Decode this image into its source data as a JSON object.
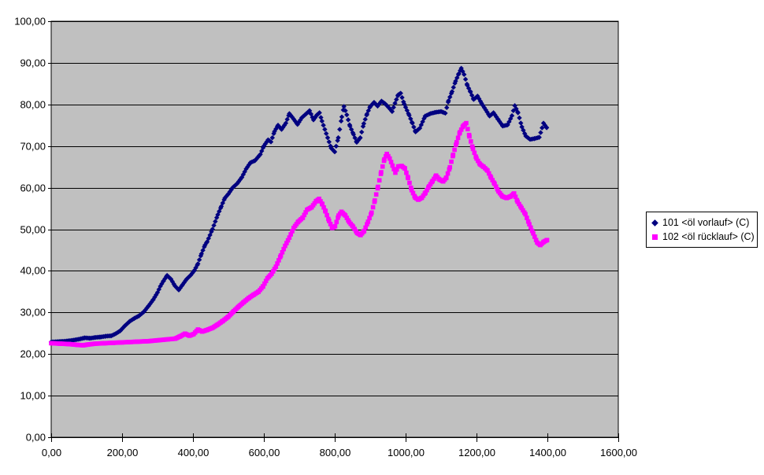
{
  "chart_data": {
    "type": "scatter",
    "title": "",
    "xlabel": "",
    "ylabel": "",
    "grid": true,
    "plot_background": "#c0c0c0",
    "gridline_color": "#000000",
    "outer_background": "#ffffff",
    "legend_position": "right-middle",
    "x_axis": {
      "min": 0,
      "max": 1600,
      "tick_step": 200,
      "tick_labels": [
        "0,00",
        "200,00",
        "400,00",
        "600,00",
        "800,00",
        "1000,00",
        "1200,00",
        "1400,00",
        "1600,00"
      ]
    },
    "y_axis": {
      "min": 0,
      "max": 100,
      "tick_step": 10,
      "tick_labels": [
        "0,00",
        "10,00",
        "20,00",
        "30,00",
        "40,00",
        "50,00",
        "60,00",
        "70,00",
        "80,00",
        "90,00",
        "100,00"
      ]
    },
    "series": [
      {
        "name": "101 <öl vorlauf> (C)",
        "color": "#000080",
        "marker": "diamond",
        "points": [
          [
            0,
            22.9
          ],
          [
            20,
            23.0
          ],
          [
            40,
            23.1
          ],
          [
            60,
            23.3
          ],
          [
            80,
            23.6
          ],
          [
            95,
            23.9
          ],
          [
            110,
            23.8
          ],
          [
            125,
            24.0
          ],
          [
            140,
            24.1
          ],
          [
            155,
            24.3
          ],
          [
            170,
            24.4
          ],
          [
            182,
            24.9
          ],
          [
            195,
            25.6
          ],
          [
            208,
            26.8
          ],
          [
            222,
            27.9
          ],
          [
            235,
            28.6
          ],
          [
            248,
            29.2
          ],
          [
            262,
            30.2
          ],
          [
            275,
            31.6
          ],
          [
            288,
            33.1
          ],
          [
            300,
            34.8
          ],
          [
            308,
            36.3
          ],
          [
            317,
            37.6
          ],
          [
            327,
            38.9
          ],
          [
            338,
            38.0
          ],
          [
            349,
            36.4
          ],
          [
            360,
            35.4
          ],
          [
            371,
            36.7
          ],
          [
            382,
            38.0
          ],
          [
            394,
            39.0
          ],
          [
            404,
            40.1
          ],
          [
            414,
            41.7
          ],
          [
            424,
            44.1
          ],
          [
            434,
            46.2
          ],
          [
            440,
            47.0
          ],
          [
            455,
            50.0
          ],
          [
            470,
            53.5
          ],
          [
            480,
            55.5
          ],
          [
            490,
            57.5
          ],
          [
            500,
            58.5
          ],
          [
            512,
            60.0
          ],
          [
            525,
            61.0
          ],
          [
            538,
            62.5
          ],
          [
            550,
            64.5
          ],
          [
            562,
            66.0
          ],
          [
            575,
            66.5
          ],
          [
            590,
            68.0
          ],
          [
            600,
            70.0
          ],
          [
            612,
            71.5
          ],
          [
            620,
            71.0
          ],
          [
            630,
            73.5
          ],
          [
            640,
            75.0
          ],
          [
            650,
            74.0
          ],
          [
            662,
            75.5
          ],
          [
            672,
            77.8
          ],
          [
            684,
            76.5
          ],
          [
            695,
            75.2
          ],
          [
            707,
            76.8
          ],
          [
            720,
            77.8
          ],
          [
            729,
            78.5
          ],
          [
            740,
            76.3
          ],
          [
            750,
            77.5
          ],
          [
            757,
            78.0
          ],
          [
            764,
            76.0
          ],
          [
            772,
            74.0
          ],
          [
            780,
            72.0
          ],
          [
            790,
            69.5
          ],
          [
            800,
            68.6
          ],
          [
            810,
            72.0
          ],
          [
            820,
            77.0
          ],
          [
            826,
            79.5
          ],
          [
            834,
            77.5
          ],
          [
            843,
            74.8
          ],
          [
            853,
            72.8
          ],
          [
            862,
            70.9
          ],
          [
            872,
            72.0
          ],
          [
            882,
            75.4
          ],
          [
            891,
            77.7
          ],
          [
            900,
            79.5
          ],
          [
            911,
            80.5
          ],
          [
            921,
            79.6
          ],
          [
            932,
            80.8
          ],
          [
            943,
            80.1
          ],
          [
            953,
            79.2
          ],
          [
            962,
            78.3
          ],
          [
            970,
            80.3
          ],
          [
            979,
            82.3
          ],
          [
            986,
            82.7
          ],
          [
            996,
            80.1
          ],
          [
            1010,
            77.4
          ],
          [
            1019,
            75.5
          ],
          [
            1028,
            73.4
          ],
          [
            1040,
            74.3
          ],
          [
            1055,
            77.2
          ],
          [
            1070,
            77.8
          ],
          [
            1084,
            78.1
          ],
          [
            1100,
            78.3
          ],
          [
            1112,
            77.9
          ],
          [
            1121,
            80.9
          ],
          [
            1131,
            83.1
          ],
          [
            1141,
            85.6
          ],
          [
            1150,
            87.4
          ],
          [
            1157,
            88.7
          ],
          [
            1165,
            87.2
          ],
          [
            1174,
            84.6
          ],
          [
            1183,
            83.0
          ],
          [
            1192,
            81.2
          ],
          [
            1203,
            82.0
          ],
          [
            1214,
            80.3
          ],
          [
            1226,
            78.7
          ],
          [
            1237,
            77.2
          ],
          [
            1248,
            78.0
          ],
          [
            1261,
            76.4
          ],
          [
            1274,
            74.8
          ],
          [
            1288,
            75.1
          ],
          [
            1300,
            77.3
          ],
          [
            1308,
            79.7
          ],
          [
            1317,
            78.0
          ],
          [
            1328,
            74.6
          ],
          [
            1339,
            72.4
          ],
          [
            1351,
            71.6
          ],
          [
            1364,
            71.8
          ],
          [
            1377,
            72.1
          ],
          [
            1389,
            75.5
          ],
          [
            1398,
            74.4
          ]
        ]
      },
      {
        "name": "102 <öl rücklauf> (C)",
        "color": "#ff00ff",
        "marker": "square",
        "points": [
          [
            0,
            22.6
          ],
          [
            25,
            22.5
          ],
          [
            50,
            22.4
          ],
          [
            75,
            22.2
          ],
          [
            90,
            22.1
          ],
          [
            105,
            22.3
          ],
          [
            125,
            22.5
          ],
          [
            150,
            22.6
          ],
          [
            175,
            22.7
          ],
          [
            200,
            22.8
          ],
          [
            225,
            22.9
          ],
          [
            250,
            23.0
          ],
          [
            275,
            23.1
          ],
          [
            300,
            23.3
          ],
          [
            325,
            23.5
          ],
          [
            350,
            23.7
          ],
          [
            365,
            24.3
          ],
          [
            378,
            24.9
          ],
          [
            390,
            24.4
          ],
          [
            402,
            24.8
          ],
          [
            414,
            25.9
          ],
          [
            426,
            25.4
          ],
          [
            440,
            25.8
          ],
          [
            455,
            26.3
          ],
          [
            470,
            27.1
          ],
          [
            485,
            28.0
          ],
          [
            500,
            29.0
          ],
          [
            515,
            30.3
          ],
          [
            530,
            31.5
          ],
          [
            545,
            32.6
          ],
          [
            558,
            33.5
          ],
          [
            572,
            34.3
          ],
          [
            585,
            35.0
          ],
          [
            598,
            36.3
          ],
          [
            610,
            38.2
          ],
          [
            622,
            39.3
          ],
          [
            634,
            41.0
          ],
          [
            648,
            43.7
          ],
          [
            660,
            46.0
          ],
          [
            672,
            48.0
          ],
          [
            684,
            50.3
          ],
          [
            697,
            51.8
          ],
          [
            710,
            52.8
          ],
          [
            722,
            54.7
          ],
          [
            735,
            55.3
          ],
          [
            748,
            56.8
          ],
          [
            756,
            57.3
          ],
          [
            765,
            56.0
          ],
          [
            774,
            54.3
          ],
          [
            784,
            52.0
          ],
          [
            793,
            50.3
          ],
          [
            801,
            50.7
          ],
          [
            811,
            53.3
          ],
          [
            819,
            54.2
          ],
          [
            830,
            53.3
          ],
          [
            841,
            51.7
          ],
          [
            852,
            50.6
          ],
          [
            863,
            49.1
          ],
          [
            873,
            48.6
          ],
          [
            883,
            49.6
          ],
          [
            894,
            51.8
          ],
          [
            904,
            54.0
          ],
          [
            913,
            56.9
          ],
          [
            922,
            60.2
          ],
          [
            931,
            63.7
          ],
          [
            940,
            66.8
          ],
          [
            947,
            68.1
          ],
          [
            955,
            67.0
          ],
          [
            963,
            65.3
          ],
          [
            971,
            63.6
          ],
          [
            979,
            65.1
          ],
          [
            989,
            65.2
          ],
          [
            998,
            64.6
          ],
          [
            1007,
            62.3
          ],
          [
            1017,
            59.4
          ],
          [
            1027,
            57.6
          ],
          [
            1036,
            57.1
          ],
          [
            1046,
            57.6
          ],
          [
            1056,
            58.8
          ],
          [
            1066,
            60.3
          ],
          [
            1076,
            61.6
          ],
          [
            1086,
            62.9
          ],
          [
            1096,
            61.9
          ],
          [
            1106,
            61.5
          ],
          [
            1115,
            62.4
          ],
          [
            1125,
            64.9
          ],
          [
            1134,
            67.9
          ],
          [
            1144,
            70.9
          ],
          [
            1153,
            73.3
          ],
          [
            1163,
            74.9
          ],
          [
            1171,
            75.5
          ],
          [
            1180,
            72.3
          ],
          [
            1190,
            69.3
          ],
          [
            1200,
            67.0
          ],
          [
            1210,
            65.6
          ],
          [
            1220,
            65.0
          ],
          [
            1231,
            64.1
          ],
          [
            1241,
            62.4
          ],
          [
            1251,
            60.9
          ],
          [
            1262,
            59.1
          ],
          [
            1273,
            57.9
          ],
          [
            1285,
            57.5
          ],
          [
            1296,
            57.9
          ],
          [
            1306,
            58.6
          ],
          [
            1316,
            56.6
          ],
          [
            1327,
            55.1
          ],
          [
            1338,
            53.6
          ],
          [
            1349,
            51.2
          ],
          [
            1360,
            49.0
          ],
          [
            1371,
            46.8
          ],
          [
            1380,
            46.2
          ],
          [
            1390,
            47.0
          ],
          [
            1399,
            47.4
          ]
        ]
      }
    ]
  }
}
